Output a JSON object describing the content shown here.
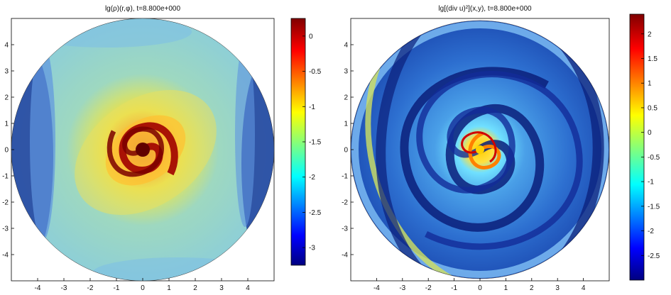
{
  "chart_data": [
    {
      "type": "heatmap",
      "title": "lg(ρ)(r,φ),  t=8.800e+000",
      "xlabel": "",
      "ylabel": "",
      "xlim": [
        -5,
        5
      ],
      "ylim": [
        -5,
        5
      ],
      "xticks": [
        -4,
        -3,
        -2,
        -1,
        0,
        1,
        2,
        3,
        4
      ],
      "yticks": [
        4,
        3,
        2,
        1,
        0,
        -1,
        -2,
        -3,
        -4
      ],
      "colorbar": {
        "range": [
          -3.25,
          0.25
        ],
        "ticks": [
          0,
          -0.5,
          -1,
          -1.5,
          -2,
          -2.5,
          -3
        ],
        "colormap": "jet"
      },
      "field": {
        "domain": "disk",
        "radius": 5,
        "description_values": "central maximum near 0 inside r<1, two-armed spiral, ambient about -1.9, low values near -3 in outer crescents"
      }
    },
    {
      "type": "heatmap",
      "title": "lg[(div u)²](x,y),  t=8.800e+000",
      "xlabel": "",
      "ylabel": "",
      "xlim": [
        -5,
        5
      ],
      "ylim": [
        -5,
        5
      ],
      "xticks": [
        -4,
        -3,
        -2,
        -1,
        0,
        1,
        2,
        3,
        4
      ],
      "yticks": [
        4,
        3,
        2,
        1,
        0,
        -1,
        -2,
        -3,
        -4
      ],
      "colorbar": {
        "range": [
          -3,
          2.4
        ],
        "ticks": [
          2,
          1.5,
          1,
          0.5,
          0,
          -0.5,
          -1,
          -1.5,
          -2,
          -2.5
        ],
        "colormap": "jet"
      },
      "field": {
        "domain": "disk",
        "radius": 5,
        "description_values": "bright center up to about 1.5, multi-armed spiral shocks alternating around -2.5 and -1"
      }
    }
  ]
}
